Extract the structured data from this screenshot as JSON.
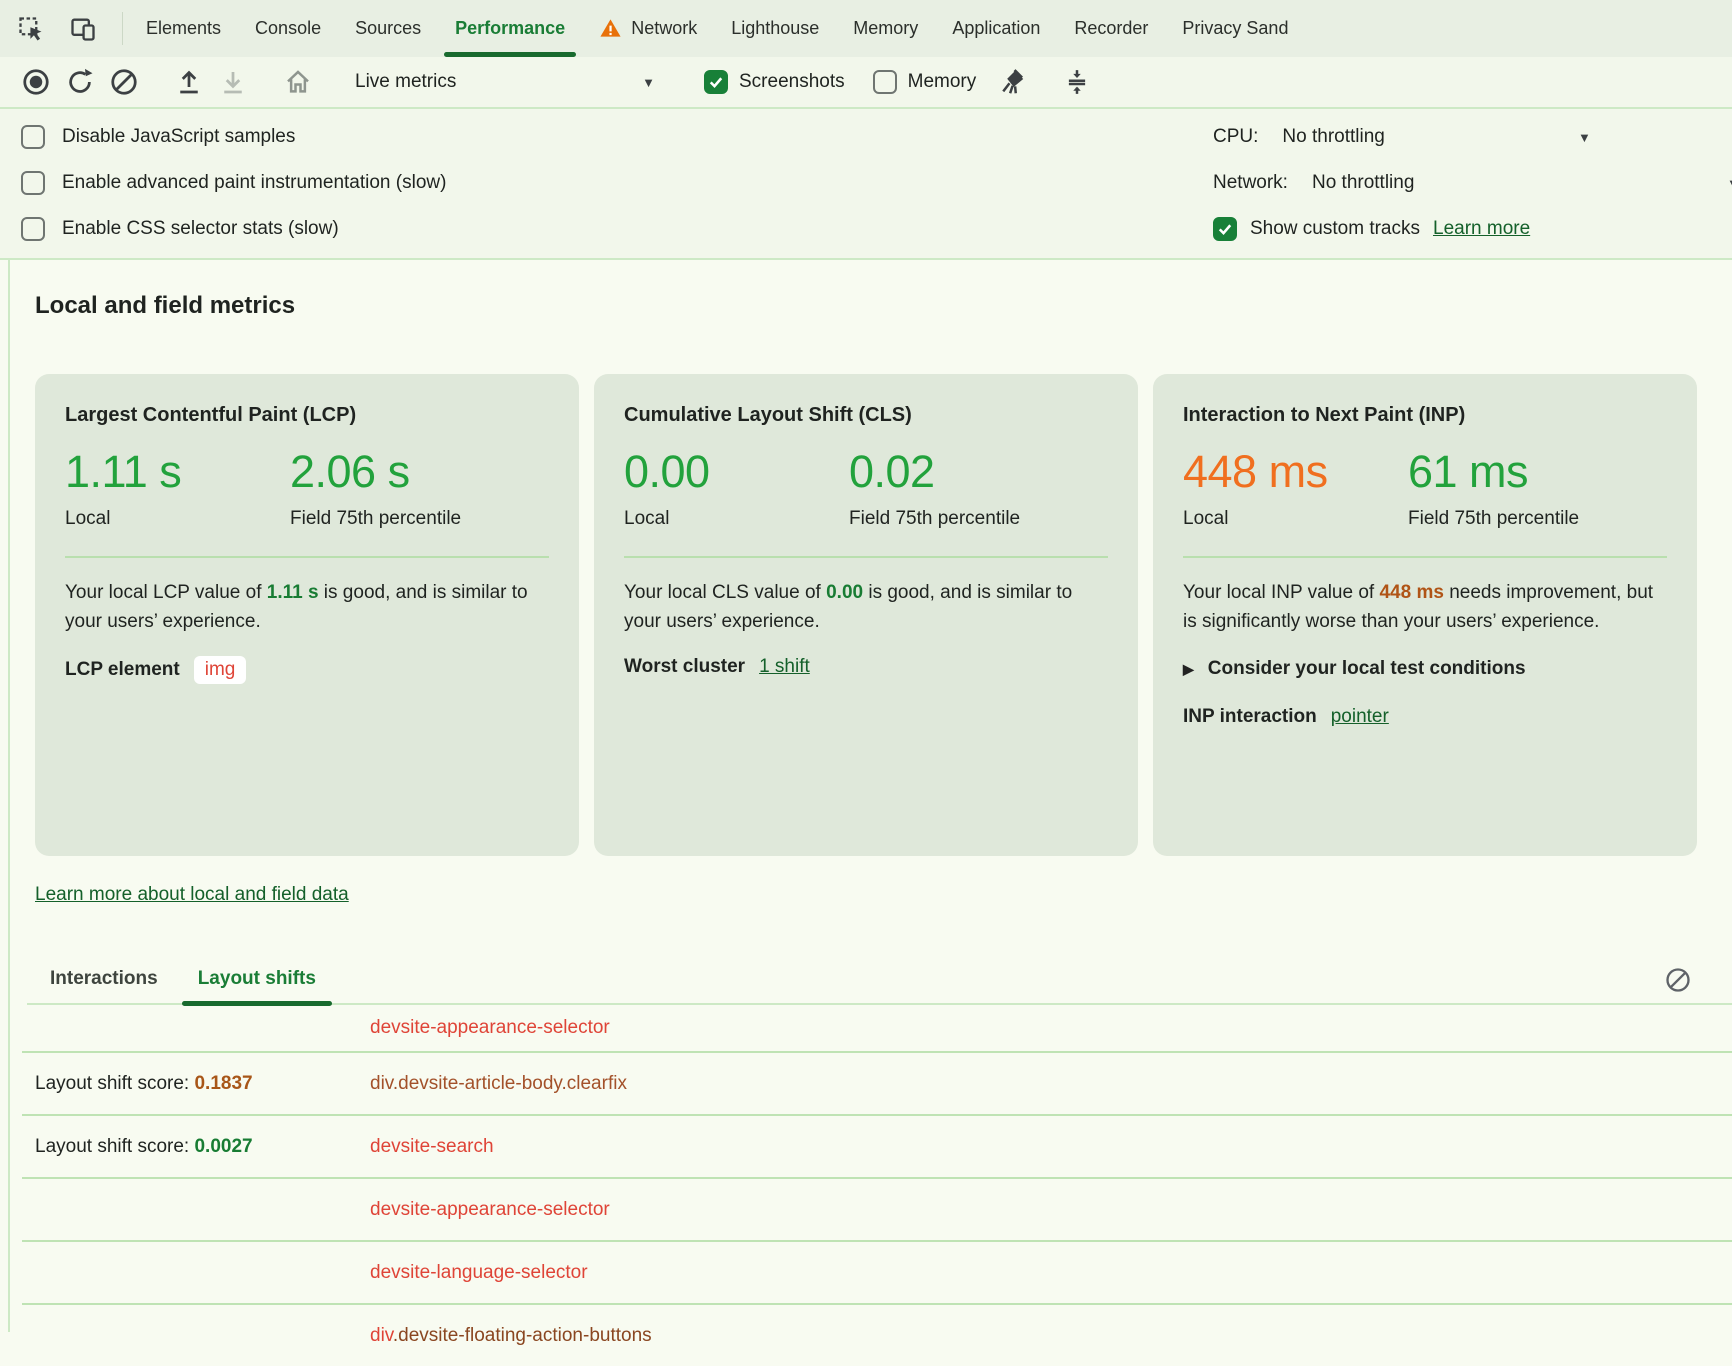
{
  "tabbar": {
    "tabs": [
      {
        "id": "elements",
        "label": "Elements"
      },
      {
        "id": "console",
        "label": "Console"
      },
      {
        "id": "sources",
        "label": "Sources"
      },
      {
        "id": "performance",
        "label": "Performance",
        "active": true
      },
      {
        "id": "network",
        "label": "Network",
        "warning": true
      },
      {
        "id": "lighthouse",
        "label": "Lighthouse"
      },
      {
        "id": "memory",
        "label": "Memory"
      },
      {
        "id": "application",
        "label": "Application"
      },
      {
        "id": "recorder",
        "label": "Recorder"
      },
      {
        "id": "privacy-sandbox",
        "label": "Privacy Sand"
      }
    ]
  },
  "toolbar": {
    "mode_label": "Live metrics",
    "screenshots_label": "Screenshots",
    "screenshots_checked": true,
    "memory_label": "Memory",
    "memory_checked": false
  },
  "settings": {
    "left_checkboxes": [
      {
        "label": "Disable JavaScript samples",
        "checked": false
      },
      {
        "label": "Enable advanced paint instrumentation (slow)",
        "checked": false
      },
      {
        "label": "Enable CSS selector stats (slow)",
        "checked": false
      }
    ],
    "cpu_label": "CPU:",
    "cpu_value": "No throttling",
    "network_label": "Network:",
    "network_value": "No throttling",
    "custom_tracks_label": "Show custom tracks",
    "custom_tracks_checked": true,
    "custom_tracks_link": "Learn more"
  },
  "metrics": {
    "heading": "Local and field metrics",
    "cards": {
      "lcp": {
        "title": "Largest Contentful Paint (LCP)",
        "local_value": "1.11 s",
        "local_label": "Local",
        "field_value": "2.06 s",
        "field_label": "Field 75th percentile",
        "desc_pre": "Your local LCP value of ",
        "desc_value": "1.11 s",
        "desc_post": " is good, and is similar to your users’ experience.",
        "footer_label": "LCP element",
        "chip": "img"
      },
      "cls": {
        "title": "Cumulative Layout Shift (CLS)",
        "local_value": "0.00",
        "local_label": "Local",
        "field_value": "0.02",
        "field_label": "Field 75th percentile",
        "desc_pre": "Your local CLS value of ",
        "desc_value": "0.00",
        "desc_post": " is good, and is similar to your users’ experience.",
        "footer_label": "Worst cluster",
        "link": "1 shift"
      },
      "inp": {
        "title": "Interaction to Next Paint (INP)",
        "local_value": "448 ms",
        "local_label": "Local",
        "field_value": "61 ms",
        "field_label": "Field 75th percentile",
        "desc_pre": "Your local INP value of ",
        "desc_value": "448 ms",
        "desc_post": " needs improvement, but is significantly worse than your users’ experience.",
        "details_label": "Consider your local test conditions",
        "footer_label": "INP interaction",
        "link": "pointer"
      }
    },
    "learn_more_link": "Learn more about local and field data"
  },
  "logs": {
    "tabs": [
      {
        "label": "Interactions",
        "active": false
      },
      {
        "label": "Layout shifts",
        "active": true
      }
    ],
    "rows": [
      {
        "element_parts": [
          {
            "text": "devsite-appearance-selector",
            "tone": "red"
          }
        ]
      },
      {
        "score_label": "Layout shift score:",
        "score_value": "0.1837",
        "score_tone": "orange",
        "element_parts": [
          {
            "text": "div.devsite-article-body.clearfix",
            "tone": "brown"
          }
        ]
      },
      {
        "score_label": "Layout shift score:",
        "score_value": "0.0027",
        "score_tone": "green",
        "element_parts": [
          {
            "text": "devsite-search",
            "tone": "red"
          }
        ]
      },
      {
        "element_parts": [
          {
            "text": "devsite-appearance-selector",
            "tone": "red"
          }
        ]
      },
      {
        "element_parts": [
          {
            "text": "devsite-language-selector",
            "tone": "red"
          }
        ]
      },
      {
        "element_parts": [
          {
            "text": "div",
            "tone": "red"
          },
          {
            "text": ".devsite-floating-action-buttons",
            "tone": "brown-dark"
          }
        ]
      }
    ]
  },
  "colors": {
    "accent_green": "#188038",
    "good_green": "#22a23c",
    "inline_green": "#187c33",
    "needs_improvement_orange": "#f06f1f",
    "inline_orange": "#b05416",
    "element_red": "#df4437",
    "element_brown": "#a3512a",
    "element_brown_dark": "#8a4620",
    "link_green": "#14602a",
    "warning_orange": "#e8710a",
    "card_bg": "#dfe8da"
  }
}
